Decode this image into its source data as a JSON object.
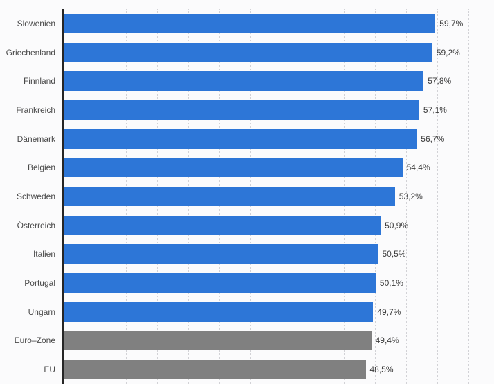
{
  "chart_data": {
    "type": "bar",
    "orientation": "horizontal",
    "categories": [
      "Slowenien",
      "Griechenland",
      "Finnland",
      "Frankreich",
      "Dänemark",
      "Belgien",
      "Schweden",
      "Österreich",
      "Italien",
      "Portugal",
      "Ungarn",
      "Euro–Zone",
      "EU"
    ],
    "values": [
      59.7,
      59.2,
      57.8,
      57.1,
      56.7,
      54.4,
      53.2,
      50.9,
      50.5,
      50.1,
      49.7,
      49.4,
      48.5
    ],
    "value_labels": [
      "59,7%",
      "59,2%",
      "57,8%",
      "57,1%",
      "56,7%",
      "54,4%",
      "53,2%",
      "50,9%",
      "50,5%",
      "50,1%",
      "49,7%",
      "49,4%",
      "48,5%"
    ],
    "bar_colors": [
      "#2d76d7",
      "#2d76d7",
      "#2d76d7",
      "#2d76d7",
      "#2d76d7",
      "#2d76d7",
      "#2d76d7",
      "#2d76d7",
      "#2d76d7",
      "#2d76d7",
      "#2d76d7",
      "#808080",
      "#808080"
    ],
    "unit": "%",
    "title": "",
    "xlabel": "",
    "ylabel": "",
    "xlim": [
      0,
      65
    ],
    "gridlines": {
      "interval_percent": 5,
      "count": 13,
      "style": "dotted"
    },
    "legend_position": "none"
  },
  "style_colors": {
    "bar_blue": "#2d76d7",
    "bar_gray": "#808080",
    "axis_line": "#262626",
    "gridline": "#d2d2d6",
    "background": "#fbfbfc",
    "category_text": "#4a4a4a",
    "value_text": "#3c3c3c"
  }
}
